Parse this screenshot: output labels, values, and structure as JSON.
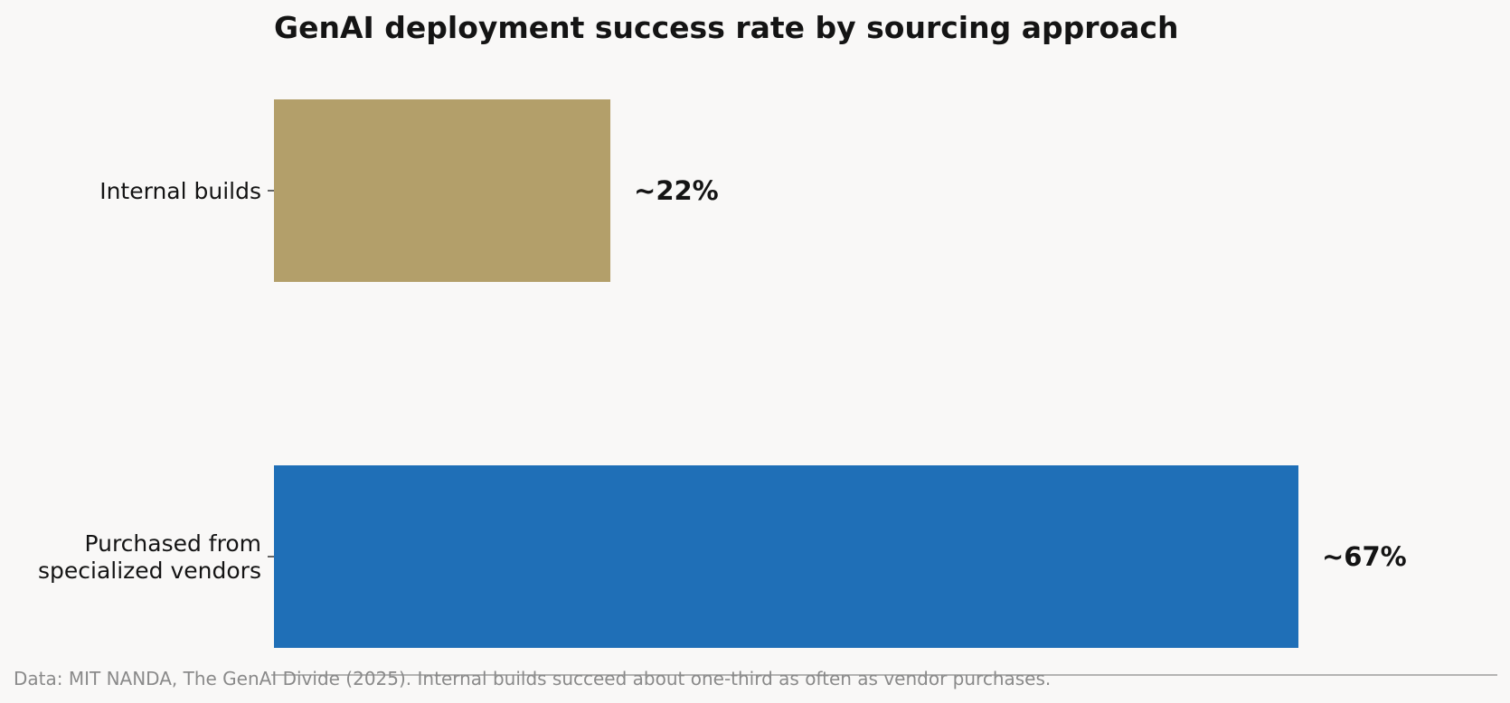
{
  "chart_data": {
    "type": "bar",
    "orientation": "horizontal",
    "title": "GenAI deployment success rate by sourcing approach",
    "categories": [
      "Internal builds",
      "Purchased from\nspecialized vendors"
    ],
    "values": [
      22,
      67
    ],
    "value_labels": [
      "~22%",
      "~67%"
    ],
    "colors": [
      "#b39f6a",
      "#1f6fb7"
    ],
    "xlabel": "",
    "ylabel": "",
    "xlim": [
      0,
      80
    ],
    "grid": false,
    "caption": "Data: MIT NANDA, The GenAI Divide (2025). Internal builds succeed about one-third as often as vendor purchases."
  }
}
